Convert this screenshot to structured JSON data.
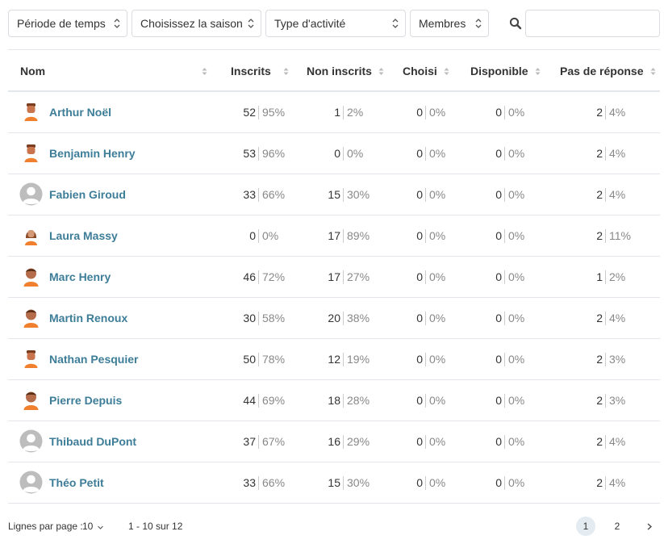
{
  "filters": {
    "period_label": "Période de temps",
    "season_label": "Choisissez la saison",
    "activity_label": "Type d'activité",
    "members_label": "Membres",
    "search_placeholder": ""
  },
  "table": {
    "columns": {
      "name": "Nom",
      "registered": "Inscrits",
      "not_registered": "Non inscrits",
      "chosen": "Choisi",
      "available": "Disponible",
      "no_answer": "Pas de réponse"
    },
    "rows": [
      {
        "name": "Arthur Noël",
        "avatar": "avatar-orange-short",
        "registered": "52",
        "registered_pct": "95%",
        "not_registered": "1",
        "not_registered_pct": "2%",
        "chosen": "0",
        "chosen_pct": "0%",
        "available": "0",
        "available_pct": "0%",
        "no_answer": "2",
        "no_answer_pct": "4%"
      },
      {
        "name": "Benjamin Henry",
        "avatar": "avatar-orange-short",
        "registered": "53",
        "registered_pct": "96%",
        "not_registered": "0",
        "not_registered_pct": "0%",
        "chosen": "0",
        "chosen_pct": "0%",
        "available": "0",
        "available_pct": "0%",
        "no_answer": "2",
        "no_answer_pct": "4%"
      },
      {
        "name": "Fabien Giroud",
        "avatar": "avatar-default",
        "registered": "33",
        "registered_pct": "66%",
        "not_registered": "15",
        "not_registered_pct": "30%",
        "chosen": "0",
        "chosen_pct": "0%",
        "available": "0",
        "available_pct": "0%",
        "no_answer": "2",
        "no_answer_pct": "4%"
      },
      {
        "name": "Laura Massy",
        "avatar": "avatar-orange-long-hair",
        "registered": "0",
        "registered_pct": "0%",
        "not_registered": "17",
        "not_registered_pct": "89%",
        "chosen": "0",
        "chosen_pct": "0%",
        "available": "0",
        "available_pct": "0%",
        "no_answer": "2",
        "no_answer_pct": "11%"
      },
      {
        "name": "Marc Henry",
        "avatar": "avatar-orange-round",
        "registered": "46",
        "registered_pct": "72%",
        "not_registered": "17",
        "not_registered_pct": "27%",
        "chosen": "0",
        "chosen_pct": "0%",
        "available": "0",
        "available_pct": "0%",
        "no_answer": "1",
        "no_answer_pct": "2%"
      },
      {
        "name": "Martin Renoux",
        "avatar": "avatar-orange-round",
        "registered": "30",
        "registered_pct": "58%",
        "not_registered": "20",
        "not_registered_pct": "38%",
        "chosen": "0",
        "chosen_pct": "0%",
        "available": "0",
        "available_pct": "0%",
        "no_answer": "2",
        "no_answer_pct": "4%"
      },
      {
        "name": "Nathan Pesquier",
        "avatar": "avatar-orange-short",
        "registered": "50",
        "registered_pct": "78%",
        "not_registered": "12",
        "not_registered_pct": "19%",
        "chosen": "0",
        "chosen_pct": "0%",
        "available": "0",
        "available_pct": "0%",
        "no_answer": "2",
        "no_answer_pct": "3%"
      },
      {
        "name": "Pierre Depuis",
        "avatar": "avatar-orange-round",
        "registered": "44",
        "registered_pct": "69%",
        "not_registered": "18",
        "not_registered_pct": "28%",
        "chosen": "0",
        "chosen_pct": "0%",
        "available": "0",
        "available_pct": "0%",
        "no_answer": "2",
        "no_answer_pct": "3%"
      },
      {
        "name": "Thibaud DuPont",
        "avatar": "avatar-default",
        "registered": "37",
        "registered_pct": "67%",
        "not_registered": "16",
        "not_registered_pct": "29%",
        "chosen": "0",
        "chosen_pct": "0%",
        "available": "0",
        "available_pct": "0%",
        "no_answer": "2",
        "no_answer_pct": "4%"
      },
      {
        "name": "Théo Petit",
        "avatar": "avatar-default",
        "registered": "33",
        "registered_pct": "66%",
        "not_registered": "15",
        "not_registered_pct": "30%",
        "chosen": "0",
        "chosen_pct": "0%",
        "available": "0",
        "available_pct": "0%",
        "no_answer": "2",
        "no_answer_pct": "4%"
      }
    ]
  },
  "pagination": {
    "rows_per_page_label": "Lignes par page :",
    "rows_per_page_value": "10",
    "range": "1 - 10 sur 12",
    "pages": [
      "1",
      "2"
    ],
    "current_page": "1"
  },
  "colors": {
    "link": "#3d7d98",
    "border": "#e3e6ea",
    "avatar_orange": "#f0802d",
    "avatar_skin": "#b56c4a",
    "avatar_default": "#bdbdbd",
    "active_page": "#e4ecf2"
  }
}
